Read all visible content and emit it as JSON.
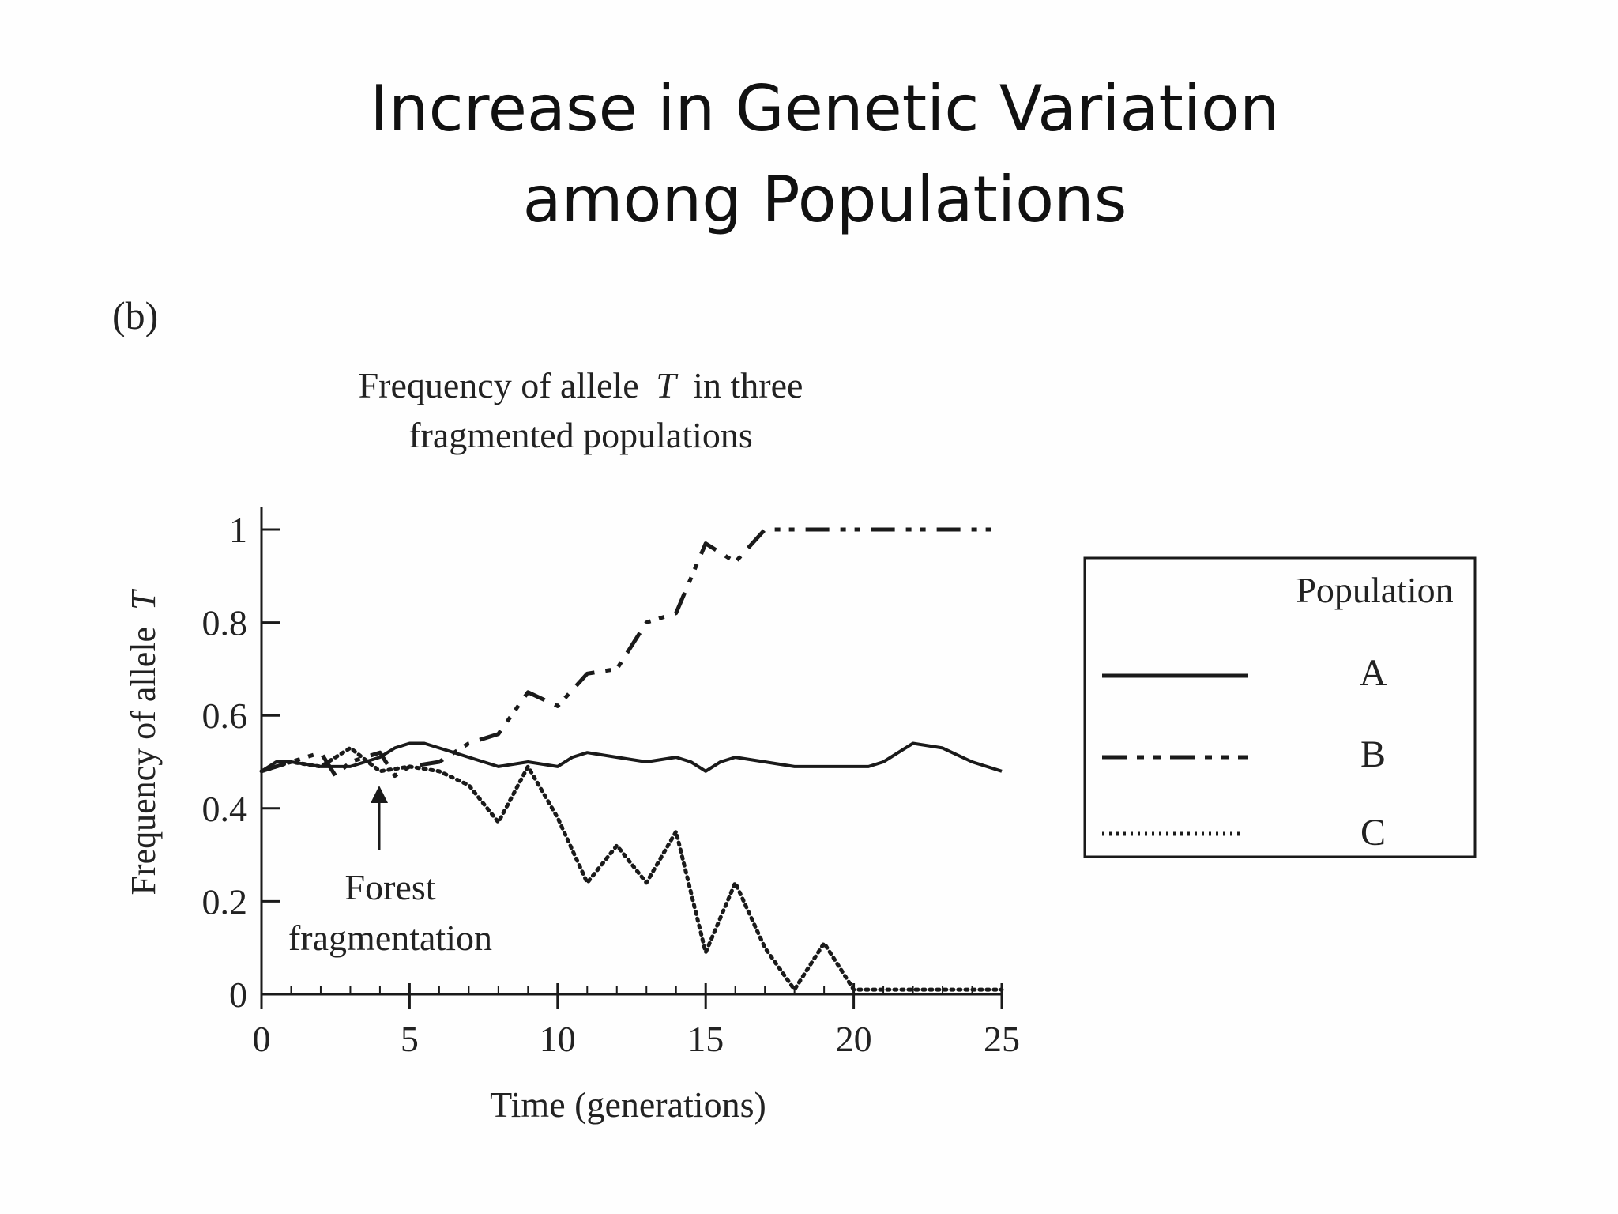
{
  "slide": {
    "title_line1": "Increase in Genetic Variation",
    "title_line2": "among Populations",
    "panel_label": "(b)"
  },
  "chart_data": {
    "type": "line",
    "title_line1": "Frequency of allele",
    "title_italic": "T",
    "title_line1_rest": "in three",
    "title_line2": "fragmented populations",
    "xlabel": "Time (generations)",
    "ylabel_text": "Frequency of allele",
    "ylabel_italic": "T",
    "xlim": [
      0,
      25
    ],
    "ylim": [
      0,
      1
    ],
    "x_ticks": [
      0,
      5,
      10,
      15,
      20,
      25
    ],
    "x_tick_labels": [
      "0",
      "5",
      "10",
      "15",
      "20",
      "25"
    ],
    "y_ticks": [
      0,
      0.2,
      0.4,
      0.6,
      0.8,
      1
    ],
    "y_tick_labels": [
      "0",
      "0.2",
      "0.4",
      "0.6",
      "0.8",
      "1"
    ],
    "minor_x_step": 1,
    "grid": false,
    "legend": {
      "title": "Population",
      "placement": "right",
      "entries": [
        "A",
        "B",
        "C"
      ]
    },
    "annotation": {
      "line1": "Forest",
      "line2": "fragmentation",
      "x": 4
    },
    "series": [
      {
        "name": "A",
        "style": "solid",
        "x": [
          0,
          0.5,
          1,
          2,
          3,
          3.5,
          4,
          4.5,
          5,
          5.5,
          6,
          6.5,
          7,
          8,
          9,
          10,
          10.5,
          11,
          12,
          13,
          14,
          14.5,
          15,
          15.5,
          16,
          17,
          18,
          19,
          20,
          20.5,
          21,
          22,
          23,
          24,
          25
        ],
        "y": [
          0.48,
          0.5,
          0.5,
          0.49,
          0.49,
          0.5,
          0.51,
          0.53,
          0.54,
          0.54,
          0.53,
          0.52,
          0.51,
          0.49,
          0.5,
          0.49,
          0.51,
          0.52,
          0.51,
          0.5,
          0.51,
          0.5,
          0.48,
          0.5,
          0.51,
          0.5,
          0.49,
          0.49,
          0.49,
          0.49,
          0.5,
          0.54,
          0.53,
          0.5,
          0.48
        ]
      },
      {
        "name": "B",
        "style": "dash-dot",
        "x": [
          0,
          1,
          2,
          2.5,
          3,
          4,
          4.5,
          5,
          6,
          7,
          8,
          9,
          10,
          11,
          12,
          13,
          14,
          15,
          16,
          17,
          18,
          19,
          20,
          21,
          22,
          23,
          24,
          25
        ],
        "y": [
          0.48,
          0.5,
          0.52,
          0.47,
          0.5,
          0.52,
          0.47,
          0.49,
          0.5,
          0.54,
          0.56,
          0.65,
          0.62,
          0.69,
          0.7,
          0.8,
          0.82,
          0.97,
          0.93,
          1,
          1,
          1,
          1,
          1,
          1,
          1,
          1,
          1
        ]
      },
      {
        "name": "C",
        "style": "dotted",
        "x": [
          0,
          1,
          2,
          3,
          4,
          5,
          6,
          7,
          8,
          9,
          10,
          11,
          12,
          13,
          14,
          15,
          16,
          17,
          18,
          19,
          20,
          21,
          22,
          23,
          24,
          25
        ],
        "y": [
          0.48,
          0.5,
          0.49,
          0.53,
          0.48,
          0.49,
          0.48,
          0.45,
          0.37,
          0.49,
          0.38,
          0.24,
          0.32,
          0.24,
          0.35,
          0.09,
          0.24,
          0.1,
          0.01,
          0.11,
          0.01,
          0.01,
          0.01,
          0.01,
          0.01,
          0.01
        ]
      }
    ]
  }
}
